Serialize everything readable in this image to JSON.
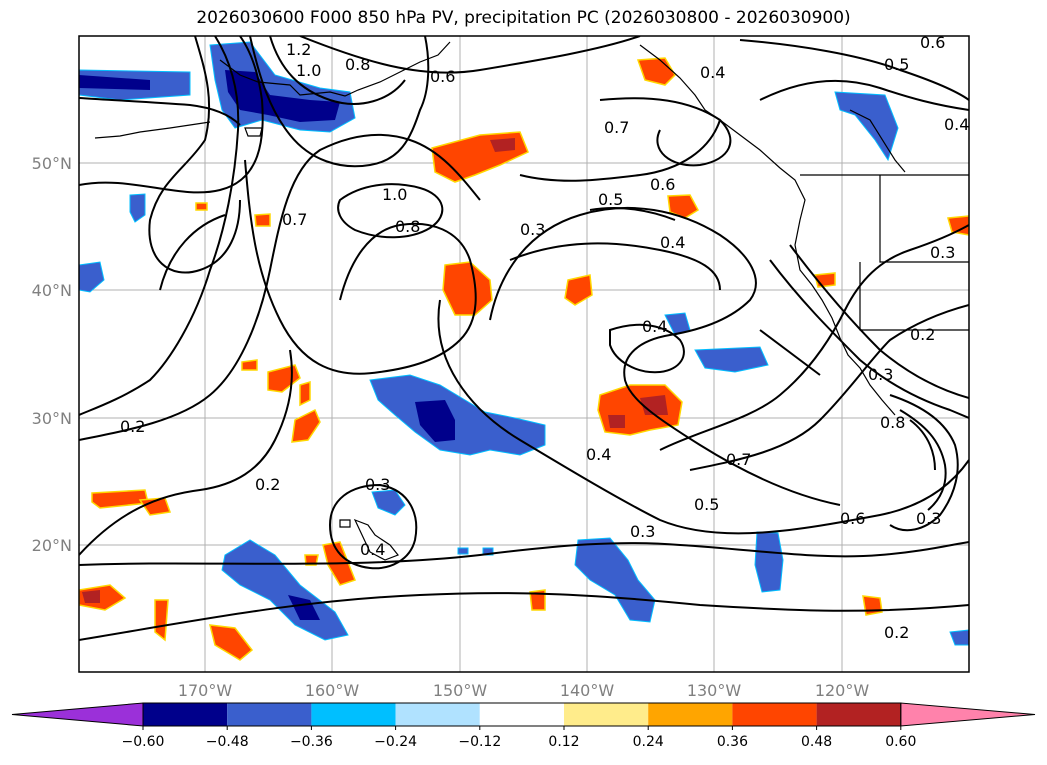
{
  "title": "2026030600 F000 850 hPa PV, precipitation PC (2026030800 - 2026030900)",
  "lat_labels": [
    "50°N",
    "40°N",
    "30°N",
    "20°N"
  ],
  "lon_labels": [
    "170°W",
    "160°W",
    "150°W",
    "140°W",
    "130°W",
    "120°W"
  ],
  "colorbar": {
    "tick_labels": [
      "−0.60",
      "−0.48",
      "−0.36",
      "−0.24",
      "−0.12",
      "0.12",
      "0.24",
      "0.36",
      "0.48",
      "0.60"
    ],
    "colors": [
      "#9b30d9",
      "#00008b",
      "#3a5fcd",
      "#00bfff",
      "#b0e2ff",
      "#ffffff",
      "#ffec8b",
      "#ffa500",
      "#ff4500",
      "#b22222",
      "#ff82ab"
    ]
  },
  "contour_labels": [
    "1.2",
    "1.0",
    "0.8",
    "0.7",
    "0.6",
    "0.5",
    "0.4",
    "0.3",
    "0.2"
  ]
}
